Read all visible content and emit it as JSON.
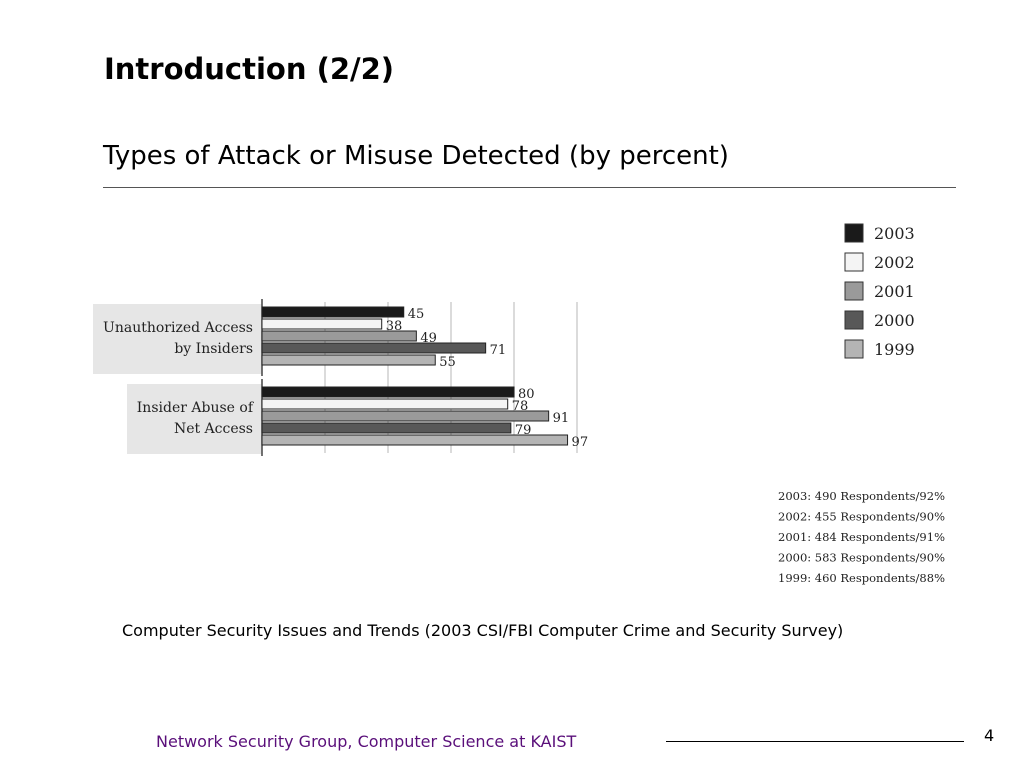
{
  "slide": {
    "title": "Introduction (2/2)",
    "subtitle": "Types of Attack or Misuse Detected (by percent)",
    "caption": "Computer Security Issues and Trends (2003 CSI/FBI Computer Crime and Security Survey)",
    "footer": "Network Security Group, Computer Science at KAIST",
    "page_number": "4"
  },
  "chart_data": {
    "type": "bar",
    "orientation": "horizontal",
    "categories": [
      [
        "Unauthorized Access",
        "by Insiders"
      ],
      [
        "Insider Abuse of",
        "Net Access"
      ]
    ],
    "series": [
      {
        "name": "2003",
        "values": [
          45,
          80
        ],
        "color": "#1a1a1a"
      },
      {
        "name": "2002",
        "values": [
          38,
          78
        ],
        "color": "#f4f4f4"
      },
      {
        "name": "2001",
        "values": [
          49,
          91
        ],
        "color": "#9a9a9a"
      },
      {
        "name": "2000",
        "values": [
          71,
          79
        ],
        "color": "#585858"
      },
      {
        "name": "1999",
        "values": [
          55,
          97
        ],
        "color": "#b4b4b4"
      }
    ],
    "xlim": [
      0,
      100
    ],
    "grid": true,
    "legend": "top-right",
    "respondents": [
      "2003: 490 Respondents/92%",
      "2002: 455 Respondents/90%",
      "2001: 484 Respondents/91%",
      "2000: 583 Respondents/90%",
      "1999: 460 Respondents/88%"
    ]
  }
}
